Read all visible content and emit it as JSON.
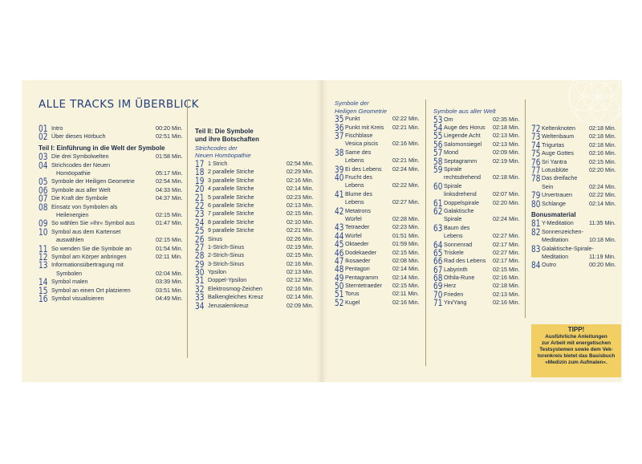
{
  "title": "ALLE TRACKS IM ÜBERBLICK",
  "col1_items": [
    {
      "kind": "t",
      "n": "01",
      "lines": [
        "Intro"
      ],
      "time": "00:20 Min."
    },
    {
      "kind": "t",
      "n": "02",
      "lines": [
        "Über dieses Hörbuch"
      ],
      "time": "02:51 Min."
    },
    {
      "kind": "h",
      "text": "Teil I: Einführung in die Welt der Symbole"
    },
    {
      "kind": "t",
      "n": "03",
      "lines": [
        "Die drei Symbolwelten"
      ],
      "time": "01:58 Min."
    },
    {
      "kind": "t",
      "n": "04",
      "lines": [
        "Strichcodes der Neuen",
        "Homöopathie"
      ],
      "time": "05:17 Min."
    },
    {
      "kind": "t",
      "n": "05",
      "lines": [
        "Symbole der Heiligen Geometrie"
      ],
      "time": "02:54 Min."
    },
    {
      "kind": "t",
      "n": "06",
      "lines": [
        "Symbole aus aller Welt"
      ],
      "time": "04:33 Min."
    },
    {
      "kind": "t",
      "n": "07",
      "lines": [
        "Die Kraft der Symbole"
      ],
      "time": "04:37 Min."
    },
    {
      "kind": "t",
      "n": "08",
      "lines": [
        "Einsatz von Symbolen als",
        "Heilenergien"
      ],
      "time": "02:15 Min."
    },
    {
      "kind": "t",
      "n": "09",
      "lines": [
        "So wählen Sie »Ihr« Symbol aus"
      ],
      "time": "01:47 Min."
    },
    {
      "kind": "t",
      "n": "10",
      "lines": [
        "Symbol aus dem Kartenset",
        "auswählen"
      ],
      "time": "02:15 Min."
    },
    {
      "kind": "t",
      "n": "11",
      "lines": [
        "So wenden Sie die Symbole an"
      ],
      "time": "01:54 Min."
    },
    {
      "kind": "t",
      "n": "12",
      "lines": [
        "Symbol am Körper anbringen"
      ],
      "time": "02:11 Min."
    },
    {
      "kind": "t",
      "n": "13",
      "lines": [
        "Informationsübertragung mit",
        "Symbolen"
      ],
      "time": "02:04 Min."
    },
    {
      "kind": "t",
      "n": "14",
      "lines": [
        "Symbol malen"
      ],
      "time": "03:39 Min."
    },
    {
      "kind": "t",
      "n": "15",
      "lines": [
        "Symbol an einen Ort platzieren"
      ],
      "time": "03:51 Min."
    },
    {
      "kind": "t",
      "n": "16",
      "lines": [
        "Symbol visualisieren"
      ],
      "time": "04:49 Min."
    }
  ],
  "col2_items": [
    {
      "kind": "h",
      "text": "Teil II: Die Symbole"
    },
    {
      "kind": "h2",
      "text": "und ihre Botschaften"
    },
    {
      "kind": "s",
      "text": "Strichcodes der"
    },
    {
      "kind": "s",
      "text": "Neuen Homöopathie"
    },
    {
      "kind": "t",
      "n": "17",
      "lines": [
        "1 Strich"
      ],
      "time": "02:54 Min."
    },
    {
      "kind": "t",
      "n": "18",
      "lines": [
        "2 parallele Striche"
      ],
      "time": "02:29 Min."
    },
    {
      "kind": "t",
      "n": "19",
      "lines": [
        "3 parallele Striche"
      ],
      "time": "02:16 Min."
    },
    {
      "kind": "t",
      "n": "20",
      "lines": [
        "4 parallele Striche"
      ],
      "time": "02:14 Min."
    },
    {
      "kind": "t",
      "n": "21",
      "lines": [
        "5 parallele Striche"
      ],
      "time": "02:23 Min."
    },
    {
      "kind": "t",
      "n": "22",
      "lines": [
        "6 parallele Striche"
      ],
      "time": "02:13 Min."
    },
    {
      "kind": "t",
      "n": "23",
      "lines": [
        "7 parallele Striche"
      ],
      "time": "02:15 Min."
    },
    {
      "kind": "t",
      "n": "24",
      "lines": [
        "8 parallele Striche"
      ],
      "time": "02:10 Min."
    },
    {
      "kind": "t",
      "n": "25",
      "lines": [
        "9 parallele Striche"
      ],
      "time": "02:21 Min."
    },
    {
      "kind": "t",
      "n": "26",
      "lines": [
        "Sinus"
      ],
      "time": "02:26 Min."
    },
    {
      "kind": "t",
      "n": "27",
      "lines": [
        "1-Strich-Sinus"
      ],
      "time": "02:19 Min."
    },
    {
      "kind": "t",
      "n": "28",
      "lines": [
        "2-Strich-Sinus"
      ],
      "time": "02:15 Min."
    },
    {
      "kind": "t",
      "n": "29",
      "lines": [
        "3-Strich-Sinus"
      ],
      "time": "02:16 Min."
    },
    {
      "kind": "t",
      "n": "30",
      "lines": [
        "Ypsilon"
      ],
      "time": "02:13 Min."
    },
    {
      "kind": "t",
      "n": "31",
      "lines": [
        "Doppel-Ypsilon"
      ],
      "time": "02:12 Min."
    },
    {
      "kind": "t",
      "n": "32",
      "lines": [
        "Elektrosmog-Zeichen"
      ],
      "time": "02:16 Min."
    },
    {
      "kind": "t",
      "n": "33",
      "lines": [
        "Balkengleiches Kreuz"
      ],
      "time": "02:14 Min."
    },
    {
      "kind": "t",
      "n": "34",
      "lines": [
        "Jerusalemkreuz"
      ],
      "time": "02:09 Min."
    }
  ],
  "col3_items": [
    {
      "kind": "s",
      "text": "Symbole der"
    },
    {
      "kind": "s",
      "text": "Heiligen Geometrie"
    },
    {
      "kind": "t",
      "n": "35",
      "lines": [
        "Punkt"
      ],
      "time": "02:22 Min."
    },
    {
      "kind": "t",
      "n": "36",
      "lines": [
        "Punkt mit Kreis"
      ],
      "time": "02:21 Min."
    },
    {
      "kind": "t",
      "n": "37",
      "lines": [
        "Fischblase",
        "Vesica piscis"
      ],
      "time": "02:16 Min."
    },
    {
      "kind": "t",
      "n": "38",
      "lines": [
        "Same des",
        "Lebens"
      ],
      "time": "02:21 Min."
    },
    {
      "kind": "t",
      "n": "39",
      "lines": [
        "Ei des Lebens"
      ],
      "time": "02:24 Min."
    },
    {
      "kind": "t",
      "n": "40",
      "lines": [
        "Frucht des",
        "Lebens"
      ],
      "time": "02:22 Min."
    },
    {
      "kind": "t",
      "n": "41",
      "lines": [
        "Blume des",
        "Lebens"
      ],
      "time": "02:27 Min."
    },
    {
      "kind": "t",
      "n": "42",
      "lines": [
        "Metatrons",
        "Würfel"
      ],
      "time": "02:28 Min."
    },
    {
      "kind": "t",
      "n": "43",
      "lines": [
        "Tetraeder"
      ],
      "time": "02:23 Min."
    },
    {
      "kind": "t",
      "n": "44",
      "lines": [
        "Würfel"
      ],
      "time": "01:51 Min."
    },
    {
      "kind": "t",
      "n": "45",
      "lines": [
        "Oktaeder"
      ],
      "time": "01:59 Min."
    },
    {
      "kind": "t",
      "n": "46",
      "lines": [
        "Dodekaeder"
      ],
      "time": "02:15 Min."
    },
    {
      "kind": "t",
      "n": "47",
      "lines": [
        "Ikosaeder"
      ],
      "time": "02:08 Min."
    },
    {
      "kind": "t",
      "n": "48",
      "lines": [
        "Pentagon"
      ],
      "time": "02:14 Min."
    },
    {
      "kind": "t",
      "n": "49",
      "lines": [
        "Pentagramm"
      ],
      "time": "02:14 Min."
    },
    {
      "kind": "t",
      "n": "50",
      "lines": [
        "Sterntetraeder"
      ],
      "time": "02:15 Min."
    },
    {
      "kind": "t",
      "n": "51",
      "lines": [
        "Torus"
      ],
      "time": "02:11 Min."
    },
    {
      "kind": "t",
      "n": "52",
      "lines": [
        "Kugel"
      ],
      "time": "02:16 Min."
    }
  ],
  "col4_items": [
    {
      "kind": "s",
      "text": "Symbole aus aller Welt"
    },
    {
      "kind": "t",
      "n": "53",
      "lines": [
        "Om"
      ],
      "time": "02:35 Min."
    },
    {
      "kind": "t",
      "n": "54",
      "lines": [
        "Auge des Horus"
      ],
      "time": "02:18 Min."
    },
    {
      "kind": "t",
      "n": "55",
      "lines": [
        "Liegende Acht"
      ],
      "time": "02:13 Min."
    },
    {
      "kind": "t",
      "n": "56",
      "lines": [
        "Salomonsiegel"
      ],
      "time": "02:13 Min."
    },
    {
      "kind": "t",
      "n": "57",
      "lines": [
        "Mond"
      ],
      "time": "02:09 Min."
    },
    {
      "kind": "t",
      "n": "58",
      "lines": [
        "Septagramm"
      ],
      "time": "02:19 Min."
    },
    {
      "kind": "t",
      "n": "59",
      "lines": [
        "Spirale",
        "rechtsdrehend"
      ],
      "time": "02:18 Min."
    },
    {
      "kind": "t",
      "n": "60",
      "lines": [
        "Spirale",
        "linksdrehend"
      ],
      "time": "02:07 Min."
    },
    {
      "kind": "t",
      "n": "61",
      "lines": [
        "Doppelspirale"
      ],
      "time": "02:20 Min."
    },
    {
      "kind": "t",
      "n": "62",
      "lines": [
        "Galaktische",
        "Spirale"
      ],
      "time": "02:24 Min."
    },
    {
      "kind": "t",
      "n": "63",
      "lines": [
        "Baum des",
        "Lebens"
      ],
      "time": "02:27 Min."
    },
    {
      "kind": "t",
      "n": "64",
      "lines": [
        "Sonnenrad"
      ],
      "time": "02:17 Min."
    },
    {
      "kind": "t",
      "n": "65",
      "lines": [
        "Triskele"
      ],
      "time": "02:27 Min."
    },
    {
      "kind": "t",
      "n": "66",
      "lines": [
        "Rad des Lebens"
      ],
      "time": "02:17 Min."
    },
    {
      "kind": "t",
      "n": "67",
      "lines": [
        "Labyrinth"
      ],
      "time": "02:15 Min."
    },
    {
      "kind": "t",
      "n": "68",
      "lines": [
        "Othila-Rune"
      ],
      "time": "02:16 Min."
    },
    {
      "kind": "t",
      "n": "69",
      "lines": [
        "Herz"
      ],
      "time": "02:18 Min."
    },
    {
      "kind": "t",
      "n": "70",
      "lines": [
        "Frieden"
      ],
      "time": "02:13 Min."
    },
    {
      "kind": "t",
      "n": "71",
      "lines": [
        "Yin/Yang"
      ],
      "time": "02:16 Min."
    }
  ],
  "col5_items": [
    {
      "kind": "t",
      "n": "72",
      "lines": [
        "Keltenknoten"
      ],
      "time": "02:18 Min."
    },
    {
      "kind": "t",
      "n": "73",
      "lines": [
        "Weltenbaum"
      ],
      "time": "02:18 Min."
    },
    {
      "kind": "t",
      "n": "74",
      "lines": [
        "Trigurtas"
      ],
      "time": "02:18 Min."
    },
    {
      "kind": "t",
      "n": "75",
      "lines": [
        "Auge Gottes"
      ],
      "time": "02:16 Min."
    },
    {
      "kind": "t",
      "n": "76",
      "lines": [
        "Sri Yantra"
      ],
      "time": "02:15 Min."
    },
    {
      "kind": "t",
      "n": "77",
      "lines": [
        "Lotusblüte"
      ],
      "time": "02:20 Min."
    },
    {
      "kind": "t",
      "n": "78",
      "lines": [
        "Das dreifache",
        "Sein"
      ],
      "time": "02:24 Min."
    },
    {
      "kind": "t",
      "n": "79",
      "lines": [
        "Urvertrauen"
      ],
      "time": "02:22 Min."
    },
    {
      "kind": "t",
      "n": "80",
      "lines": [
        "Schlange"
      ],
      "time": "02:14 Min."
    },
    {
      "kind": "h",
      "text": "Bonusmaterial"
    },
    {
      "kind": "t",
      "n": "81",
      "lines": [
        "Y-Meditation"
      ],
      "time": "11:35 Min."
    },
    {
      "kind": "t",
      "n": "82",
      "lines": [
        "Sonnenzeichen-",
        "Meditation"
      ],
      "time": "10:18 Min."
    },
    {
      "kind": "t",
      "n": "83",
      "lines": [
        "Galaktische-Spirale-",
        "Meditation"
      ],
      "time": "11:19 Min."
    },
    {
      "kind": "t",
      "n": "84",
      "lines": [
        "Outro"
      ],
      "time": "00:20 Min."
    }
  ],
  "tipp": {
    "head": "TIPP!",
    "lines": [
      "Ausführliche Anleitungen",
      "zur Arbeit mit energetischen",
      "Testsystemen sowie dem Vek-",
      "torenkreis bietet das Basisbuch",
      "»Medizin zum Aufmalen«."
    ]
  }
}
